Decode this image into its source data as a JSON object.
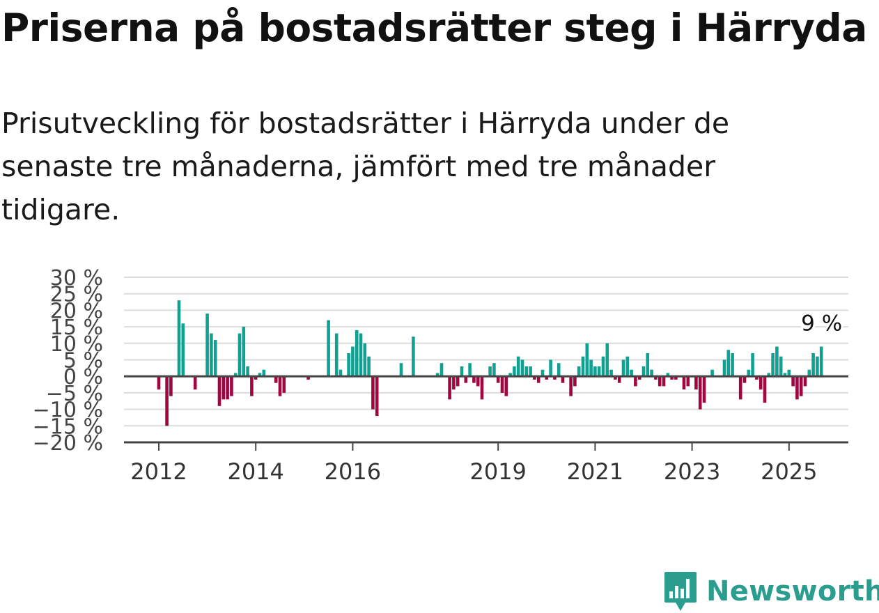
{
  "title": "Priserna på bostadsrätter steg i Härryda",
  "subtitle": "Prisutveckling för bostadsrätter i Härryda under de senaste tre månaderna, jämfört med tre månader tidigare.",
  "colors": {
    "positive": "#11a192",
    "negative": "#a0063f",
    "logo": "#2a9d8f"
  },
  "logo": {
    "text": "Newsworthy",
    "icon": "newsworthy-bar-chart-icon"
  },
  "chart_data": {
    "type": "bar",
    "title": "",
    "xlabel": "",
    "ylabel": "",
    "ylim": [
      -20,
      30
    ],
    "grid": true,
    "y_ticks": [
      {
        "value": 30,
        "label": "30 %"
      },
      {
        "value": 25,
        "label": "25 %"
      },
      {
        "value": 20,
        "label": "20 %"
      },
      {
        "value": 15,
        "label": "15 %"
      },
      {
        "value": 10,
        "label": "10 %"
      },
      {
        "value": 5,
        "label": "5 %"
      },
      {
        "value": 0,
        "label": "0 %"
      },
      {
        "value": -5,
        "label": "−5 %"
      },
      {
        "value": -10,
        "label": "−10 %"
      },
      {
        "value": -15,
        "label": "−15 %"
      },
      {
        "value": -20,
        "label": "−20 %"
      }
    ],
    "x_ticks": [
      {
        "date": "2012-01",
        "label": "2012"
      },
      {
        "date": "2014-01",
        "label": "2014"
      },
      {
        "date": "2016-01",
        "label": "2016"
      },
      {
        "date": "2019-01",
        "label": "2019"
      },
      {
        "date": "2021-01",
        "label": "2021"
      },
      {
        "date": "2023-01",
        "label": "2023"
      },
      {
        "date": "2025-01",
        "label": "2025"
      }
    ],
    "annotation": {
      "date": "2025-09",
      "value": 9,
      "label": "9 %"
    },
    "bars": [
      [
        "2012-01",
        -4
      ],
      [
        "2012-03",
        -15
      ],
      [
        "2012-04",
        -6
      ],
      [
        "2012-06",
        23
      ],
      [
        "2012-07",
        16
      ],
      [
        "2012-10",
        -4
      ],
      [
        "2013-01",
        19
      ],
      [
        "2013-02",
        13
      ],
      [
        "2013-03",
        11
      ],
      [
        "2013-04",
        -9
      ],
      [
        "2013-05",
        -7
      ],
      [
        "2013-06",
        -7
      ],
      [
        "2013-07",
        -6
      ],
      [
        "2013-08",
        1
      ],
      [
        "2013-09",
        13
      ],
      [
        "2013-10",
        15
      ],
      [
        "2013-11",
        3
      ],
      [
        "2013-12",
        -6
      ],
      [
        "2014-01",
        -1
      ],
      [
        "2014-02",
        1
      ],
      [
        "2014-03",
        2
      ],
      [
        "2014-06",
        -2
      ],
      [
        "2014-07",
        -6
      ],
      [
        "2014-08",
        -5
      ],
      [
        "2015-02",
        -1
      ],
      [
        "2015-07",
        17
      ],
      [
        "2015-09",
        13
      ],
      [
        "2015-10",
        2
      ],
      [
        "2015-12",
        7
      ],
      [
        "2016-01",
        9
      ],
      [
        "2016-02",
        14
      ],
      [
        "2016-03",
        13
      ],
      [
        "2016-04",
        10
      ],
      [
        "2016-05",
        6
      ],
      [
        "2016-06",
        -10
      ],
      [
        "2016-07",
        -12
      ],
      [
        "2017-01",
        4
      ],
      [
        "2017-04",
        12
      ],
      [
        "2017-10",
        1
      ],
      [
        "2017-11",
        4
      ],
      [
        "2018-01",
        -7
      ],
      [
        "2018-02",
        -4
      ],
      [
        "2018-03",
        -3
      ],
      [
        "2018-04",
        3
      ],
      [
        "2018-05",
        -2
      ],
      [
        "2018-06",
        4
      ],
      [
        "2018-07",
        -2
      ],
      [
        "2018-08",
        -3
      ],
      [
        "2018-09",
        -7
      ],
      [
        "2018-11",
        3
      ],
      [
        "2018-12",
        4
      ],
      [
        "2019-01",
        -2
      ],
      [
        "2019-02",
        -5
      ],
      [
        "2019-03",
        -6
      ],
      [
        "2019-04",
        1
      ],
      [
        "2019-05",
        3
      ],
      [
        "2019-06",
        6
      ],
      [
        "2019-07",
        5
      ],
      [
        "2019-08",
        3
      ],
      [
        "2019-09",
        3
      ],
      [
        "2019-10",
        -1
      ],
      [
        "2019-11",
        -2
      ],
      [
        "2019-12",
        2
      ],
      [
        "2020-01",
        -1
      ],
      [
        "2020-02",
        5
      ],
      [
        "2020-03",
        -1
      ],
      [
        "2020-04",
        4
      ],
      [
        "2020-05",
        -2
      ],
      [
        "2020-07",
        -6
      ],
      [
        "2020-08",
        -3
      ],
      [
        "2020-09",
        3
      ],
      [
        "2020-10",
        6
      ],
      [
        "2020-11",
        10
      ],
      [
        "2020-12",
        5
      ],
      [
        "2021-01",
        3
      ],
      [
        "2021-02",
        3
      ],
      [
        "2021-03",
        6
      ],
      [
        "2021-04",
        10
      ],
      [
        "2021-05",
        2
      ],
      [
        "2021-06",
        -1
      ],
      [
        "2021-07",
        -2
      ],
      [
        "2021-08",
        5
      ],
      [
        "2021-09",
        6
      ],
      [
        "2021-10",
        2
      ],
      [
        "2021-11",
        -3
      ],
      [
        "2021-12",
        -1
      ],
      [
        "2022-01",
        3
      ],
      [
        "2022-02",
        7
      ],
      [
        "2022-03",
        2
      ],
      [
        "2022-04",
        -1
      ],
      [
        "2022-05",
        -3
      ],
      [
        "2022-06",
        -3
      ],
      [
        "2022-07",
        1
      ],
      [
        "2022-08",
        -1
      ],
      [
        "2022-09",
        -1
      ],
      [
        "2022-11",
        -4
      ],
      [
        "2022-12",
        -3
      ],
      [
        "2023-02",
        -4
      ],
      [
        "2023-03",
        -10
      ],
      [
        "2023-04",
        -8
      ],
      [
        "2023-06",
        2
      ],
      [
        "2023-09",
        5
      ],
      [
        "2023-10",
        8
      ],
      [
        "2023-11",
        7
      ],
      [
        "2024-01",
        -7
      ],
      [
        "2024-02",
        -2
      ],
      [
        "2024-03",
        2
      ],
      [
        "2024-04",
        7
      ],
      [
        "2024-05",
        -1
      ],
      [
        "2024-06",
        -4
      ],
      [
        "2024-07",
        -8
      ],
      [
        "2024-08",
        1
      ],
      [
        "2024-09",
        7
      ],
      [
        "2024-10",
        9
      ],
      [
        "2024-11",
        6
      ],
      [
        "2024-12",
        1
      ],
      [
        "2025-01",
        2
      ],
      [
        "2025-02",
        -3
      ],
      [
        "2025-03",
        -7
      ],
      [
        "2025-04",
        -6
      ],
      [
        "2025-05",
        -3
      ],
      [
        "2025-06",
        2
      ],
      [
        "2025-07",
        7
      ],
      [
        "2025-08",
        6
      ],
      [
        "2025-09",
        9
      ]
    ]
  }
}
